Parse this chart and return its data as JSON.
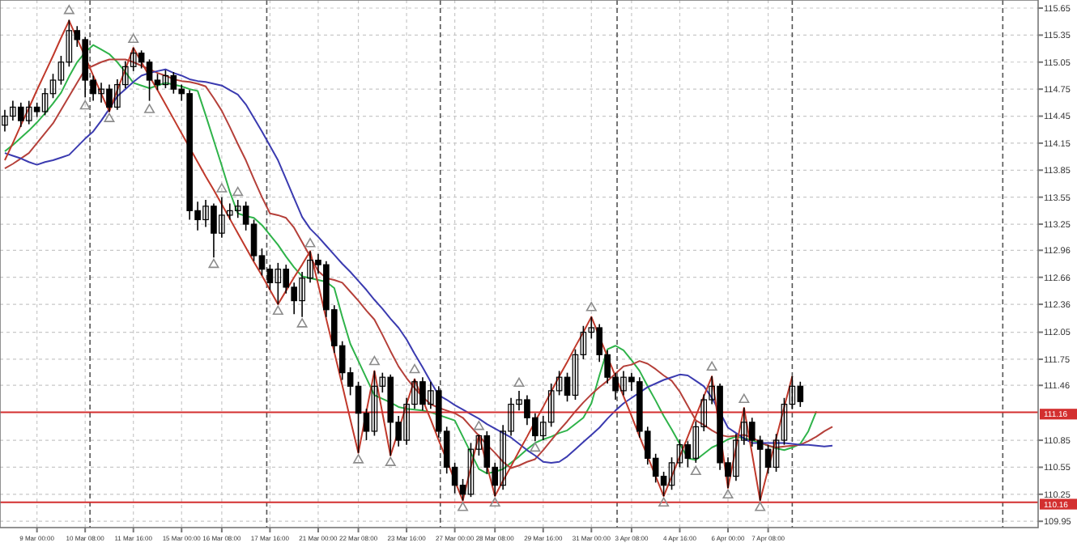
{
  "chart_data": {
    "type": "candlestick",
    "categories": [
      null,
      null,
      null,
      null,
      "9 Mar 00:00",
      null,
      null,
      null,
      null,
      null,
      "10 Mar 08:00",
      null,
      null,
      null,
      null,
      null,
      "11 Mar 16:00",
      null,
      null,
      null,
      null,
      null,
      "15 Mar 00:00",
      null,
      null,
      null,
      null,
      "16 Mar 08:00",
      null,
      null,
      null,
      null,
      null,
      "17 Mar 16:00",
      null,
      null,
      null,
      null,
      null,
      "21 Mar 00:00",
      null,
      null,
      null,
      null,
      "22 Mar 08:00",
      null,
      null,
      null,
      null,
      null,
      "23 Mar 16:00",
      null,
      null,
      null,
      null,
      null,
      "27 Mar 00:00",
      null,
      null,
      null,
      null,
      "28 Mar 08:00",
      null,
      null,
      null,
      null,
      null,
      "29 Mar 16:00",
      null,
      null,
      null,
      null,
      null,
      "31 Mar 00:00",
      null,
      null,
      null,
      null,
      "3 Apr 08:00",
      null,
      null,
      null,
      null,
      null,
      "4 Apr 16:00",
      null,
      null,
      null,
      null,
      null,
      "6 Apr 00:00",
      null,
      null,
      null,
      null,
      "7 Apr 08:00",
      null,
      null,
      null,
      null,
      null,
      null,
      null,
      null,
      null,
      null,
      null,
      null,
      null,
      null,
      null,
      null,
      null,
      null,
      null,
      null,
      null,
      null,
      null,
      null,
      null,
      null,
      null,
      null,
      null,
      null,
      null,
      null,
      null
    ],
    "ylim": [
      109.88,
      115.74
    ],
    "yticks": [
      115.65,
      115.35,
      115.05,
      114.75,
      114.45,
      114.15,
      113.85,
      113.55,
      113.25,
      112.96,
      112.66,
      112.36,
      112.05,
      111.75,
      111.46,
      110.85,
      110.55,
      110.25,
      109.95
    ],
    "grid": true,
    "ohlc": [
      [
        114.35,
        114.52,
        114.28,
        114.45
      ],
      [
        114.45,
        114.62,
        114.4,
        114.55
      ],
      [
        114.55,
        114.6,
        114.33,
        114.4
      ],
      [
        114.4,
        114.62,
        114.36,
        114.55
      ],
      [
        114.55,
        114.6,
        114.44,
        114.5
      ],
      [
        114.5,
        114.76,
        114.46,
        114.7
      ],
      [
        114.7,
        114.92,
        114.65,
        114.85
      ],
      [
        114.85,
        115.12,
        114.8,
        115.05
      ],
      [
        115.05,
        115.52,
        115.0,
        115.4
      ],
      [
        115.4,
        115.45,
        115.22,
        115.3
      ],
      [
        115.3,
        115.33,
        114.66,
        114.85
      ],
      [
        114.85,
        114.9,
        114.62,
        114.7
      ],
      [
        114.7,
        114.82,
        114.6,
        114.75
      ],
      [
        114.75,
        114.8,
        114.5,
        114.55
      ],
      [
        114.55,
        114.86,
        114.52,
        114.8
      ],
      [
        114.8,
        115.06,
        114.76,
        115.0
      ],
      [
        115.0,
        115.21,
        114.95,
        115.15
      ],
      [
        115.15,
        115.18,
        114.98,
        115.05
      ],
      [
        115.05,
        115.08,
        114.62,
        114.85
      ],
      [
        114.85,
        114.92,
        114.74,
        114.8
      ],
      [
        114.8,
        114.96,
        114.76,
        114.9
      ],
      [
        114.9,
        114.94,
        114.7,
        114.75
      ],
      [
        114.75,
        114.8,
        114.62,
        114.7
      ],
      [
        114.7,
        114.74,
        113.3,
        113.4
      ],
      [
        113.4,
        113.5,
        113.18,
        113.3
      ],
      [
        113.3,
        113.52,
        113.22,
        113.45
      ],
      [
        113.45,
        113.48,
        112.88,
        113.15
      ],
      [
        113.15,
        113.55,
        113.1,
        113.35
      ],
      [
        113.35,
        113.48,
        113.3,
        113.4
      ],
      [
        113.4,
        113.52,
        113.32,
        113.45
      ],
      [
        113.45,
        113.5,
        113.18,
        113.25
      ],
      [
        113.25,
        113.3,
        112.84,
        112.9
      ],
      [
        112.9,
        112.98,
        112.68,
        112.75
      ],
      [
        112.75,
        112.8,
        112.52,
        112.6
      ],
      [
        112.6,
        112.82,
        112.36,
        112.75
      ],
      [
        112.75,
        112.8,
        112.48,
        112.55
      ],
      [
        112.55,
        112.6,
        112.25,
        112.4
      ],
      [
        112.4,
        112.72,
        112.22,
        112.65
      ],
      [
        112.65,
        112.95,
        112.6,
        112.85
      ],
      [
        112.85,
        112.92,
        112.7,
        112.8
      ],
      [
        112.8,
        112.84,
        112.22,
        112.3
      ],
      [
        112.3,
        112.35,
        111.82,
        111.9
      ],
      [
        111.9,
        111.95,
        111.52,
        111.6
      ],
      [
        111.6,
        111.66,
        111.35,
        111.45
      ],
      [
        111.45,
        111.5,
        110.71,
        111.15
      ],
      [
        111.15,
        111.2,
        110.85,
        110.95
      ],
      [
        110.95,
        111.62,
        110.9,
        111.45
      ],
      [
        111.45,
        111.6,
        111.38,
        111.55
      ],
      [
        111.55,
        111.58,
        110.68,
        111.05
      ],
      [
        111.05,
        111.12,
        110.78,
        110.85
      ],
      [
        110.85,
        111.32,
        110.8,
        111.25
      ],
      [
        111.25,
        111.53,
        111.2,
        111.5
      ],
      [
        111.5,
        111.55,
        111.18,
        111.25
      ],
      [
        111.25,
        111.5,
        111.2,
        111.4
      ],
      [
        111.4,
        111.45,
        110.88,
        110.95
      ],
      [
        110.95,
        111.0,
        110.48,
        110.55
      ],
      [
        110.55,
        110.6,
        110.26,
        110.35
      ],
      [
        110.35,
        110.42,
        110.18,
        110.25
      ],
      [
        110.25,
        110.82,
        110.22,
        110.75
      ],
      [
        110.75,
        110.91,
        110.68,
        110.9
      ],
      [
        110.9,
        110.95,
        110.48,
        110.55
      ],
      [
        110.55,
        110.6,
        110.23,
        110.35
      ],
      [
        110.35,
        111.02,
        110.3,
        110.95
      ],
      [
        110.95,
        111.32,
        110.9,
        111.25
      ],
      [
        111.25,
        111.4,
        111.18,
        111.3
      ],
      [
        111.3,
        111.35,
        111.02,
        111.1
      ],
      [
        111.1,
        111.15,
        110.84,
        110.9
      ],
      [
        110.9,
        111.12,
        110.85,
        111.05
      ],
      [
        111.05,
        111.48,
        111.0,
        111.4
      ],
      [
        111.4,
        111.62,
        111.35,
        111.55
      ],
      [
        111.55,
        111.6,
        111.28,
        111.35
      ],
      [
        111.35,
        111.86,
        111.3,
        111.8
      ],
      [
        111.8,
        112.12,
        111.75,
        112.05
      ],
      [
        112.05,
        112.22,
        111.98,
        112.1
      ],
      [
        112.1,
        112.14,
        111.72,
        111.8
      ],
      [
        111.8,
        111.85,
        111.48,
        111.55
      ],
      [
        111.55,
        111.6,
        111.3,
        111.4
      ],
      [
        111.4,
        111.62,
        111.35,
        111.55
      ],
      [
        111.55,
        111.6,
        111.4,
        111.5
      ],
      [
        111.5,
        111.55,
        110.88,
        110.95
      ],
      [
        110.95,
        111.0,
        110.58,
        110.65
      ],
      [
        110.65,
        110.7,
        110.38,
        110.45
      ],
      [
        110.45,
        110.5,
        110.23,
        110.35
      ],
      [
        110.35,
        110.66,
        110.3,
        110.6
      ],
      [
        110.6,
        110.86,
        110.55,
        110.8
      ],
      [
        110.8,
        110.84,
        110.55,
        110.65
      ],
      [
        110.65,
        111.06,
        110.6,
        111.0
      ],
      [
        111.0,
        111.36,
        110.95,
        111.3
      ],
      [
        111.3,
        111.56,
        111.25,
        111.45
      ],
      [
        111.45,
        111.48,
        110.52,
        110.6
      ],
      [
        110.6,
        110.66,
        110.32,
        110.45
      ],
      [
        110.45,
        110.92,
        110.4,
        110.85
      ],
      [
        110.85,
        111.21,
        110.8,
        111.05
      ],
      [
        111.05,
        111.1,
        110.78,
        110.85
      ],
      [
        110.85,
        110.9,
        110.18,
        110.75
      ],
      [
        110.75,
        110.8,
        110.48,
        110.55
      ],
      [
        110.55,
        110.92,
        110.5,
        110.85
      ],
      [
        110.85,
        111.32,
        110.8,
        111.25
      ],
      [
        111.25,
        111.56,
        111.2,
        111.45
      ],
      [
        111.45,
        111.5,
        111.22,
        111.28
      ],
      null,
      null,
      null,
      null,
      null,
      null,
      null,
      null,
      null,
      null,
      null,
      null,
      null,
      null,
      null,
      null,
      null,
      null,
      null,
      null,
      null,
      null,
      null,
      null,
      null,
      null,
      null,
      null,
      null
    ],
    "series": [
      {
        "type": "line",
        "color": "#2fb34a",
        "values": [
          114.06,
          114.13,
          114.21,
          114.29,
          114.38,
          114.48,
          114.59,
          114.71,
          114.89,
          115.05,
          115.16,
          115.24,
          115.19,
          115.14,
          115.05,
          114.94,
          114.82,
          114.79,
          114.76,
          114.79,
          114.82,
          114.8,
          114.78,
          114.75,
          114.73,
          114.46,
          114.18,
          113.9,
          113.61,
          113.37,
          113.34,
          113.32,
          113.24,
          113.13,
          113.02,
          112.89,
          112.77,
          112.67,
          112.65,
          112.63,
          112.61,
          112.54,
          112.22,
          111.92,
          111.73,
          111.54,
          111.35,
          111.31,
          111.27,
          111.22,
          111.2,
          111.19,
          111.18,
          111.16,
          111.13,
          111.1,
          111.07,
          110.89,
          110.71,
          110.53,
          110.48,
          110.5,
          110.53,
          110.6,
          110.67,
          110.75,
          110.82,
          110.86,
          110.89,
          110.93,
          110.96,
          111.03,
          111.1,
          111.26,
          111.57,
          111.86,
          111.9,
          111.85,
          111.74,
          111.62,
          111.45,
          111.29,
          111.12,
          110.97,
          110.81,
          110.65,
          110.63,
          110.7,
          110.77,
          110.81,
          110.86,
          110.89,
          110.87,
          110.85,
          110.82,
          110.79,
          110.76,
          110.74,
          110.77,
          110.81,
          110.95,
          111.17,
          null,
          null,
          null,
          null,
          null,
          null,
          null,
          null,
          null,
          null,
          null,
          null,
          null,
          null,
          null,
          null,
          null,
          null,
          null,
          null,
          null,
          null,
          null,
          null,
          null,
          null,
          null
        ]
      },
      {
        "type": "line",
        "color": "#b5403a",
        "values": [
          113.87,
          113.92,
          113.98,
          114.04,
          114.15,
          114.26,
          114.37,
          114.52,
          114.67,
          114.82,
          114.97,
          115.01,
          115.05,
          115.08,
          115.08,
          115.08,
          115.05,
          115.01,
          114.97,
          114.93,
          114.9,
          114.86,
          114.84,
          114.83,
          114.81,
          114.78,
          114.65,
          114.51,
          114.33,
          114.14,
          113.96,
          113.75,
          113.55,
          113.37,
          113.35,
          113.32,
          113.21,
          113.05,
          112.89,
          112.73,
          112.65,
          112.63,
          112.6,
          112.5,
          112.4,
          112.29,
          112.19,
          112.02,
          111.84,
          111.67,
          111.54,
          111.43,
          111.33,
          111.25,
          111.21,
          111.18,
          111.15,
          111.1,
          111.0,
          110.9,
          110.8,
          110.71,
          110.61,
          110.54,
          110.57,
          110.61,
          110.64,
          110.74,
          110.85,
          110.96,
          111.06,
          111.17,
          111.27,
          111.36,
          111.44,
          111.51,
          111.59,
          111.67,
          111.69,
          111.73,
          111.7,
          111.64,
          111.57,
          111.51,
          111.39,
          111.23,
          111.07,
          111.02,
          110.96,
          110.91,
          110.89,
          110.9,
          110.91,
          110.88,
          110.83,
          110.79,
          110.77,
          110.78,
          110.79,
          110.8,
          110.84,
          110.89,
          110.95,
          111.0,
          null,
          null,
          null,
          null,
          null,
          null,
          null,
          null,
          null,
          null,
          null,
          null,
          null,
          null,
          null,
          null,
          null,
          null,
          null,
          null,
          null,
          null,
          null,
          null,
          null
        ]
      },
      {
        "type": "line",
        "color": "#3b3bb0",
        "values": [
          114.04,
          114.01,
          113.98,
          113.94,
          113.91,
          113.94,
          113.96,
          113.99,
          114.02,
          114.11,
          114.2,
          114.28,
          114.4,
          114.53,
          114.67,
          114.75,
          114.83,
          114.9,
          114.93,
          114.95,
          114.97,
          114.93,
          114.9,
          114.86,
          114.84,
          114.83,
          114.81,
          114.79,
          114.74,
          114.69,
          114.58,
          114.43,
          114.28,
          114.12,
          113.96,
          113.75,
          113.54,
          113.33,
          113.2,
          113.11,
          113.01,
          112.91,
          112.81,
          112.72,
          112.62,
          112.52,
          112.41,
          112.31,
          112.2,
          112.1,
          111.97,
          111.81,
          111.66,
          111.5,
          111.35,
          111.3,
          111.24,
          111.19,
          111.14,
          111.09,
          111.03,
          110.98,
          110.93,
          110.88,
          110.81,
          110.74,
          110.68,
          110.61,
          110.6,
          110.61,
          110.67,
          110.75,
          110.83,
          110.91,
          110.99,
          111.09,
          111.18,
          111.26,
          111.32,
          111.38,
          111.44,
          111.48,
          111.52,
          111.55,
          111.58,
          111.57,
          111.51,
          111.45,
          111.32,
          111.16,
          110.99,
          110.93,
          110.87,
          110.82,
          110.82,
          110.82,
          110.82,
          110.82,
          110.81,
          110.8,
          110.8,
          110.79,
          110.78,
          110.79,
          null,
          null,
          null,
          null,
          null,
          null,
          null,
          null,
          null,
          null,
          null,
          null,
          null,
          null,
          null,
          null,
          null,
          null,
          null,
          null,
          null,
          null,
          null,
          null,
          null
        ]
      },
      {
        "type": "line",
        "color": "#c0392b",
        "values": [
          113.96,
          114.15,
          114.35,
          114.54,
          114.74,
          114.93,
          115.12,
          115.32,
          115.51,
          115.31,
          115.11,
          114.9,
          114.7,
          114.5,
          114.74,
          114.97,
          115.21,
          115.05,
          114.89,
          114.74,
          114.58,
          114.42,
          114.26,
          114.1,
          113.94,
          113.78,
          113.63,
          113.47,
          113.31,
          113.15,
          112.99,
          112.83,
          112.68,
          112.52,
          112.36,
          112.51,
          112.66,
          112.8,
          112.95,
          112.58,
          112.2,
          111.83,
          111.46,
          111.08,
          110.71,
          111.17,
          111.62,
          111.15,
          110.68,
          110.96,
          111.25,
          111.53,
          111.3,
          111.08,
          110.85,
          110.63,
          110.4,
          110.18,
          110.55,
          110.91,
          110.57,
          110.23,
          110.4,
          110.56,
          110.73,
          110.89,
          111.06,
          111.22,
          111.39,
          111.56,
          111.72,
          111.89,
          112.05,
          112.22,
          112.0,
          111.78,
          111.56,
          111.34,
          111.12,
          110.89,
          110.67,
          110.45,
          110.23,
          110.45,
          110.67,
          110.89,
          111.12,
          111.34,
          111.56,
          110.94,
          110.32,
          110.77,
          111.21,
          110.7,
          110.18,
          110.53,
          110.87,
          111.22,
          111.56,
          null,
          null,
          null,
          null,
          null,
          null,
          null,
          null,
          null,
          null,
          null,
          null,
          null,
          null,
          null,
          null,
          null,
          null,
          null,
          null,
          null,
          null,
          null,
          null,
          null,
          null,
          null,
          null,
          null,
          null
        ]
      },
      {
        "type": "scatter",
        "color": "#8c8c8c",
        "marker": "triangle",
        "values": [
          null,
          null,
          null,
          null,
          null,
          null,
          null,
          null,
          115.62,
          null,
          null,
          null,
          null,
          null,
          null,
          null,
          115.3,
          null,
          null,
          null,
          null,
          null,
          null,
          null,
          null,
          null,
          null,
          113.64,
          null,
          113.6,
          null,
          null,
          null,
          null,
          null,
          null,
          null,
          null,
          113.03,
          null,
          null,
          null,
          null,
          null,
          null,
          null,
          111.72,
          null,
          null,
          null,
          null,
          111.63,
          null,
          null,
          null,
          null,
          null,
          null,
          null,
          111.0,
          null,
          null,
          null,
          null,
          111.48,
          null,
          null,
          null,
          null,
          null,
          null,
          null,
          null,
          112.32,
          null,
          null,
          null,
          null,
          null,
          null,
          null,
          null,
          null,
          null,
          null,
          null,
          null,
          null,
          111.66,
          null,
          null,
          null,
          111.3,
          null,
          null,
          null,
          null,
          null,
          null,
          null,
          null,
          null,
          null,
          null,
          null,
          null,
          null,
          null,
          null,
          null,
          null,
          null,
          null,
          null,
          null,
          null,
          null,
          null,
          null,
          null,
          null,
          null,
          null,
          null,
          null,
          null,
          null,
          null,
          null
        ]
      },
      {
        "type": "scatter",
        "color": "#8c8c8c",
        "marker": "triangle",
        "values": [
          null,
          null,
          null,
          null,
          null,
          null,
          null,
          null,
          null,
          null,
          114.56,
          null,
          null,
          114.42,
          null,
          null,
          null,
          null,
          114.52,
          null,
          null,
          null,
          null,
          null,
          null,
          null,
          112.8,
          null,
          null,
          null,
          null,
          null,
          null,
          null,
          112.28,
          null,
          null,
          112.14,
          null,
          null,
          null,
          null,
          null,
          null,
          110.63,
          null,
          null,
          null,
          110.6,
          null,
          null,
          null,
          null,
          null,
          null,
          null,
          null,
          110.1,
          null,
          null,
          null,
          110.15,
          null,
          null,
          null,
          null,
          110.76,
          null,
          null,
          null,
          null,
          null,
          null,
          null,
          null,
          null,
          null,
          null,
          null,
          null,
          null,
          null,
          110.15,
          null,
          null,
          null,
          110.5,
          null,
          null,
          null,
          110.24,
          null,
          null,
          null,
          110.1,
          null,
          null,
          null,
          null,
          null,
          null,
          null,
          null,
          null,
          null,
          null,
          null,
          null,
          null,
          null,
          null,
          null,
          null,
          null,
          null,
          null,
          null,
          null,
          null,
          null,
          null,
          null,
          null,
          null,
          null,
          null,
          null,
          null,
          null
        ]
      }
    ],
    "ref_lines": [
      {
        "axis": "y",
        "value": 111.16,
        "label": "111.16",
        "color": "#d32f2f"
      },
      {
        "axis": "y",
        "value": 110.16,
        "label": "110.16",
        "color": "#d32f2f"
      }
    ]
  }
}
